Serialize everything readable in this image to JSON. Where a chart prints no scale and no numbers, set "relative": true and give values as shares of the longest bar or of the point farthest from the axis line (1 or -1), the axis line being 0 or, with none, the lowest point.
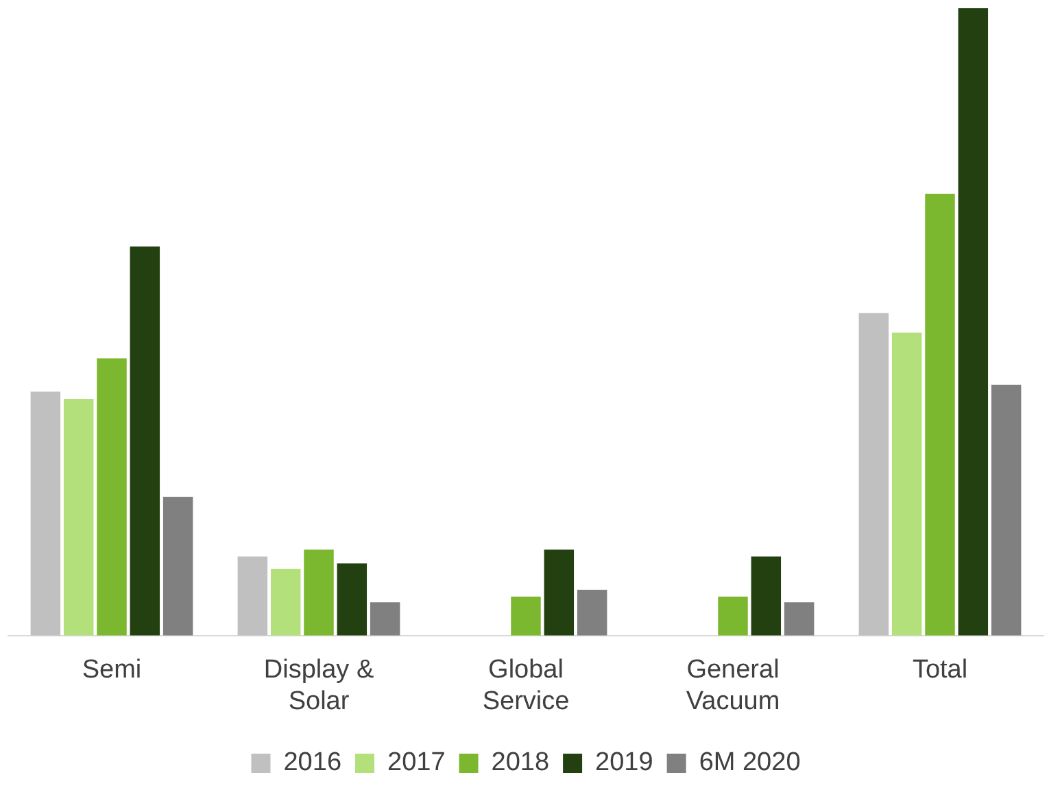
{
  "chart_data": {
    "type": "bar",
    "relative": true,
    "categories": [
      "Semi",
      "Display & Solar",
      "Global Service",
      "General Vacuum",
      "Total"
    ],
    "series": [
      {
        "name": "2016",
        "color": "#c0c0c0",
        "values": [
          0.389,
          0.126,
          null,
          null,
          0.514
        ]
      },
      {
        "name": "2017",
        "color": "#b3e07a",
        "values": [
          0.377,
          0.106,
          null,
          null,
          0.483
        ]
      },
      {
        "name": "2018",
        "color": "#7cb82f",
        "values": [
          0.442,
          0.137,
          0.062,
          0.062,
          0.704
        ]
      },
      {
        "name": "2019",
        "color": "#234010",
        "values": [
          0.62,
          0.115,
          0.137,
          0.126,
          1
        ]
      },
      {
        "name": "6M 2020",
        "color": "#808080",
        "values": [
          0.221,
          0.053,
          0.073,
          0.053,
          0.4
        ]
      }
    ],
    "legend": "bottom",
    "grid": false
  }
}
